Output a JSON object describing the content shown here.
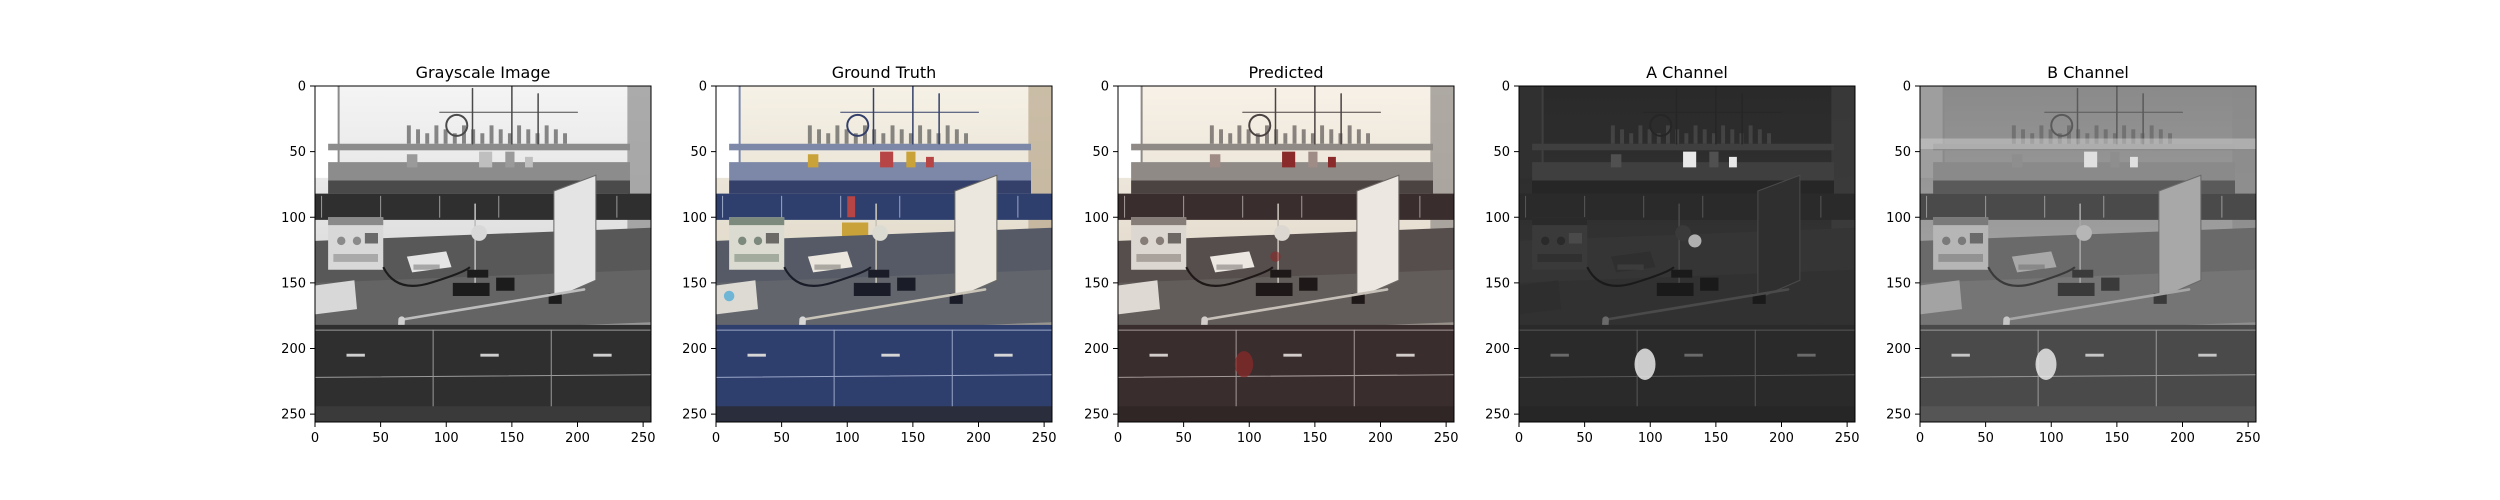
{
  "figure": {
    "panels": [
      {
        "title": "Grayscale Image",
        "mode": "gray",
        "x_ticks": [
          "0",
          "50",
          "100",
          "150",
          "200",
          "250"
        ],
        "y_ticks": [
          "0",
          "50",
          "100",
          "150",
          "200",
          "250"
        ]
      },
      {
        "title": "Ground Truth",
        "mode": "gt",
        "x_ticks": [
          "0",
          "50",
          "100",
          "150",
          "200",
          "250"
        ],
        "y_ticks": [
          "0",
          "50",
          "100",
          "150",
          "200",
          "250"
        ]
      },
      {
        "title": "Predicted",
        "mode": "pred",
        "x_ticks": [
          "0",
          "50",
          "100",
          "150",
          "200",
          "250"
        ],
        "y_ticks": [
          "0",
          "50",
          "100",
          "150",
          "200",
          "250"
        ]
      },
      {
        "title": "A Channel",
        "mode": "a",
        "x_ticks": [
          "0",
          "50",
          "100",
          "150",
          "200",
          "250"
        ],
        "y_ticks": [
          "0",
          "50",
          "100",
          "150",
          "200",
          "250"
        ]
      },
      {
        "title": "B Channel",
        "mode": "b",
        "x_ticks": [
          "0",
          "50",
          "100",
          "150",
          "200",
          "250"
        ],
        "y_ticks": [
          "0",
          "50",
          "100",
          "150",
          "200",
          "250"
        ]
      }
    ],
    "image_extent": [
      0,
      256
    ],
    "colors": {
      "axis": "#000000",
      "background": "#ffffff",
      "gt_cabinet_blue": "#2e3f6e",
      "pred_cabinet_brown": "#3a2d2d",
      "pred_red_spot": "#8a2a2a"
    }
  }
}
